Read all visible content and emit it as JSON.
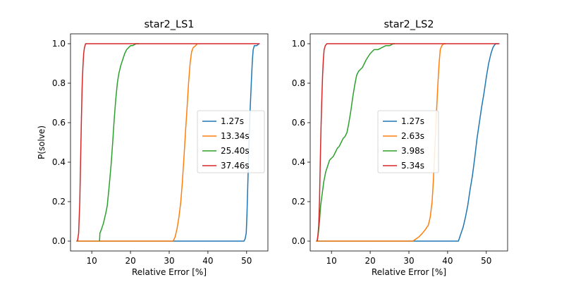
{
  "chart_data": [
    {
      "type": "line",
      "title": "star2_LS1",
      "xlabel": "Relative Error [%]",
      "ylabel": "P(solve)",
      "xlim": [
        4.5,
        55.5
      ],
      "ylim": [
        -0.05,
        1.05
      ],
      "xticks": [
        10,
        20,
        30,
        40,
        50
      ],
      "yticks": [
        0.0,
        0.2,
        0.4,
        0.6,
        0.8,
        1.0
      ],
      "ytick_labels": [
        "0.0",
        "0.2",
        "0.4",
        "0.6",
        "0.8",
        "1.0"
      ],
      "legend_loc": "center right",
      "grid": false,
      "series": [
        {
          "name": "1.27s",
          "color": "#1f77b4",
          "x": [
            6.0,
            49.3,
            49.6,
            49.9,
            50.1,
            50.3,
            50.5,
            50.7,
            50.9,
            51.1,
            51.3,
            51.5,
            51.7,
            52.0,
            52.6,
            53.2
          ],
          "y": [
            0.0,
            0.0,
            0.01,
            0.04,
            0.14,
            0.28,
            0.42,
            0.55,
            0.66,
            0.75,
            0.84,
            0.92,
            0.97,
            0.99,
            0.99,
            1.0
          ]
        },
        {
          "name": "13.34s",
          "color": "#ff7f0e",
          "x": [
            6.0,
            31.0,
            31.5,
            32.0,
            32.5,
            33.0,
            33.4,
            33.8,
            34.2,
            34.6,
            35.0,
            35.4,
            35.8,
            36.2,
            36.8,
            37.3
          ],
          "y": [
            0.0,
            0.0,
            0.02,
            0.06,
            0.12,
            0.2,
            0.3,
            0.42,
            0.55,
            0.67,
            0.8,
            0.9,
            0.96,
            0.98,
            0.99,
            1.0
          ]
        },
        {
          "name": "25.40s",
          "color": "#2ca02c",
          "x": [
            12.0,
            12.1,
            12.5,
            13.0,
            13.6,
            14.0,
            14.5,
            15.0,
            15.4,
            15.8,
            16.2,
            16.6,
            17.0,
            17.5,
            18.0,
            18.5,
            19.0,
            19.5,
            20.0,
            20.5,
            21.0,
            21.5,
            22.0,
            22.2
          ],
          "y": [
            0.0,
            0.04,
            0.06,
            0.09,
            0.14,
            0.18,
            0.28,
            0.39,
            0.5,
            0.62,
            0.72,
            0.8,
            0.85,
            0.89,
            0.92,
            0.95,
            0.97,
            0.98,
            0.99,
            0.99,
            0.995,
            1.0,
            1.0,
            1.0
          ]
        },
        {
          "name": "37.46s",
          "color": "#d62728",
          "x": [
            6.3,
            6.6,
            6.9,
            7.1,
            7.3,
            7.5,
            7.7,
            7.9,
            8.1,
            8.4,
            8.8,
            53.4
          ],
          "y": [
            0.0,
            0.04,
            0.2,
            0.4,
            0.6,
            0.78,
            0.88,
            0.95,
            0.98,
            1.0,
            1.0,
            1.0
          ]
        }
      ]
    },
    {
      "type": "line",
      "title": "star2_LS2",
      "xlabel": "Relative Error [%]",
      "ylabel": "",
      "xlim": [
        4.5,
        55.5
      ],
      "ylim": [
        -0.05,
        1.05
      ],
      "xticks": [
        10,
        20,
        30,
        40,
        50
      ],
      "yticks": [
        0.0,
        0.2,
        0.4,
        0.6,
        0.8,
        1.0
      ],
      "ytick_labels": [
        "0.0",
        "0.2",
        "0.4",
        "0.6",
        "0.8",
        "1.0"
      ],
      "legend_loc": "center",
      "grid": false,
      "series": [
        {
          "name": "1.27s",
          "color": "#1f77b4",
          "x": [
            6.0,
            42.8,
            43.3,
            44.0,
            44.6,
            45.2,
            45.8,
            46.4,
            47.0,
            47.6,
            48.2,
            48.8,
            49.4,
            50.0,
            50.6,
            51.2,
            51.7,
            52.0,
            52.4,
            53.2
          ],
          "y": [
            0.0,
            0.0,
            0.03,
            0.07,
            0.12,
            0.18,
            0.26,
            0.33,
            0.42,
            0.52,
            0.6,
            0.68,
            0.75,
            0.83,
            0.9,
            0.95,
            0.98,
            0.99,
            1.0,
            1.0
          ]
        },
        {
          "name": "2.63s",
          "color": "#ff7f0e",
          "x": [
            6.0,
            31.0,
            32.5,
            33.5,
            34.3,
            35.0,
            35.5,
            36.0,
            36.3,
            36.6,
            36.9,
            37.2,
            37.5,
            37.8,
            38.1,
            38.5,
            39.0,
            39.5
          ],
          "y": [
            0.0,
            0.0,
            0.02,
            0.04,
            0.06,
            0.08,
            0.12,
            0.2,
            0.3,
            0.42,
            0.55,
            0.68,
            0.8,
            0.9,
            0.97,
            0.99,
            1.0,
            1.0
          ]
        },
        {
          "name": "3.98s",
          "color": "#2ca02c",
          "x": [
            6.3,
            6.6,
            6.9,
            7.2,
            7.6,
            8.0,
            8.5,
            9.0,
            9.5,
            10.0,
            10.5,
            11.0,
            11.5,
            12.0,
            12.5,
            13.0,
            13.5,
            14.0,
            14.5,
            15.0,
            15.5,
            16.0,
            16.5,
            17.0,
            17.5,
            18.0,
            18.5,
            19.0,
            20.0,
            21.0,
            22.0,
            23.0,
            24.0,
            25.0,
            26.0,
            26.4
          ],
          "y": [
            0.0,
            0.04,
            0.1,
            0.18,
            0.24,
            0.3,
            0.35,
            0.38,
            0.41,
            0.42,
            0.43,
            0.45,
            0.47,
            0.48,
            0.5,
            0.52,
            0.53,
            0.55,
            0.6,
            0.66,
            0.73,
            0.79,
            0.84,
            0.86,
            0.87,
            0.88,
            0.9,
            0.92,
            0.95,
            0.97,
            0.97,
            0.98,
            0.99,
            0.99,
            1.0,
            1.0
          ]
        },
        {
          "name": "5.34s",
          "color": "#d62728",
          "x": [
            6.3,
            6.5,
            6.7,
            6.9,
            7.1,
            7.3,
            7.5,
            7.7,
            7.9,
            8.1,
            8.4,
            8.8,
            53.4
          ],
          "y": [
            0.0,
            0.03,
            0.08,
            0.2,
            0.4,
            0.58,
            0.72,
            0.84,
            0.92,
            0.97,
            0.99,
            1.0,
            1.0
          ]
        }
      ]
    }
  ]
}
